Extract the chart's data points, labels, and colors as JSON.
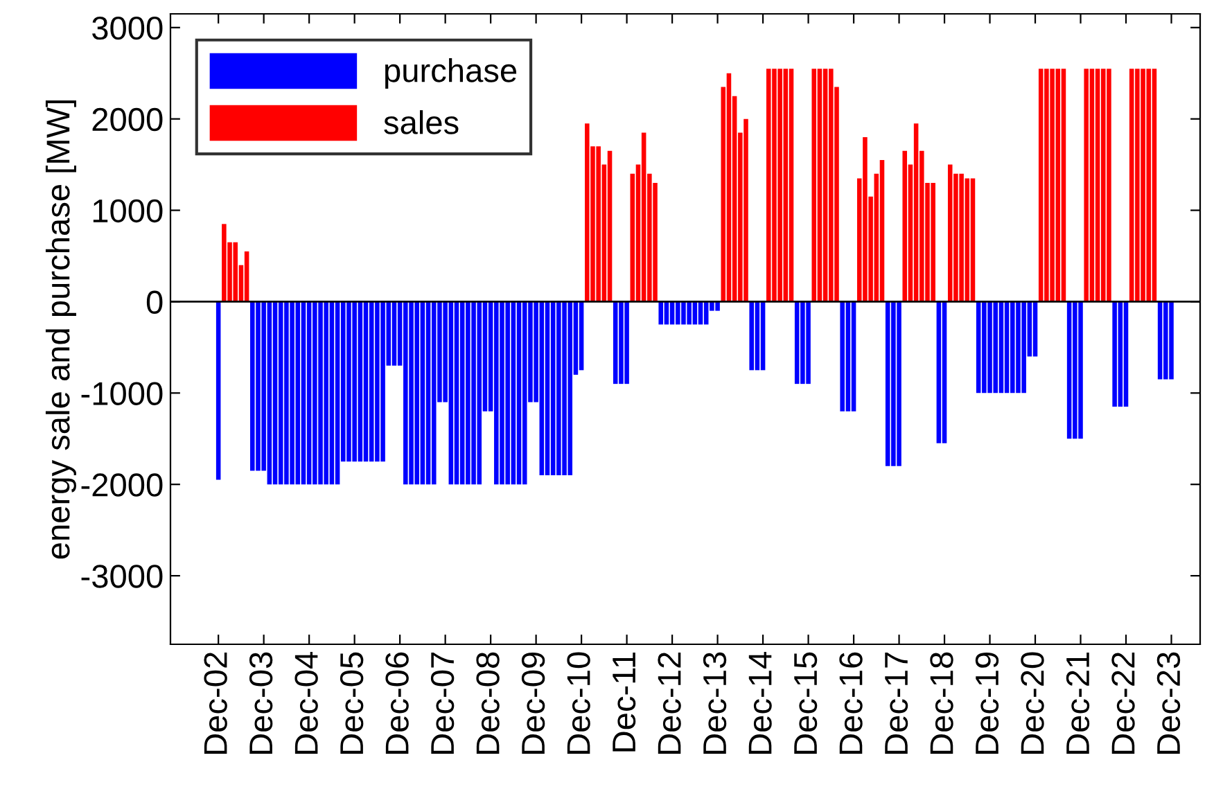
{
  "chart_data": {
    "type": "bar",
    "ylabel": "energy sale and purchase [MW]",
    "categories": [
      "Dec-02",
      null,
      null,
      null,
      null,
      null,
      null,
      null,
      "Dec-03",
      null,
      null,
      null,
      null,
      null,
      null,
      null,
      "Dec-04",
      null,
      null,
      null,
      null,
      null,
      null,
      null,
      "Dec-05",
      null,
      null,
      null,
      null,
      null,
      null,
      null,
      "Dec-06",
      null,
      null,
      null,
      null,
      null,
      null,
      null,
      "Dec-07",
      null,
      null,
      null,
      null,
      null,
      null,
      null,
      "Dec-08",
      null,
      null,
      null,
      null,
      null,
      null,
      null,
      "Dec-09",
      null,
      null,
      null,
      null,
      null,
      null,
      null,
      "Dec-10",
      null,
      null,
      null,
      null,
      null,
      null,
      null,
      "Dec-11",
      null,
      null,
      null,
      null,
      null,
      null,
      null,
      "Dec-12",
      null,
      null,
      null,
      null,
      null,
      null,
      null,
      "Dec-13",
      null,
      null,
      null,
      null,
      null,
      null,
      null,
      "Dec-14",
      null,
      null,
      null,
      null,
      null,
      null,
      null,
      "Dec-15",
      null,
      null,
      null,
      null,
      null,
      null,
      null,
      "Dec-16",
      null,
      null,
      null,
      null,
      null,
      null,
      null,
      "Dec-17",
      null,
      null,
      null,
      null,
      null,
      null,
      null,
      "Dec-18",
      null,
      null,
      null,
      null,
      null,
      null,
      null,
      "Dec-19",
      null,
      null,
      null,
      null,
      null,
      null,
      null,
      "Dec-20",
      null,
      null,
      null,
      null,
      null,
      null,
      null,
      "Dec-21",
      null,
      null,
      null,
      null,
      null,
      null,
      null,
      "Dec-22",
      null,
      null,
      null,
      null,
      null,
      null,
      null,
      "Dec-23"
    ],
    "series": [
      {
        "name": "purchase",
        "color": "#0000ff",
        "values": [
          -1950,
          null,
          null,
          null,
          null,
          null,
          -1850,
          -1850,
          -1850,
          -2000,
          -2000,
          -2000,
          -2000,
          -2000,
          -2000,
          -2000,
          -2000,
          -2000,
          -2000,
          -2000,
          -2000,
          -2000,
          -1750,
          -1750,
          -1750,
          -1750,
          -1750,
          -1750,
          -1750,
          -1750,
          -700,
          -700,
          -700,
          -2000,
          -2000,
          -2000,
          -2000,
          -2000,
          -2000,
          -1100,
          -1100,
          -2000,
          -2000,
          -2000,
          -2000,
          -2000,
          -2000,
          -1200,
          -1200,
          -2000,
          -2000,
          -2000,
          -2000,
          -2000,
          -2000,
          -1100,
          -1100,
          -1900,
          -1900,
          -1900,
          -1900,
          -1900,
          -1900,
          -800,
          -750,
          null,
          null,
          null,
          null,
          null,
          -900,
          -900,
          -900,
          null,
          null,
          null,
          null,
          null,
          -250,
          -250,
          -250,
          -250,
          -250,
          -250,
          -250,
          -250,
          -250,
          -100,
          -100,
          null,
          null,
          null,
          null,
          null,
          -750,
          -750,
          -750,
          null,
          null,
          null,
          null,
          null,
          -900,
          -900,
          -900,
          null,
          null,
          null,
          null,
          null,
          -1200,
          -1200,
          -1200,
          null,
          null,
          null,
          null,
          null,
          -1800,
          -1800,
          -1800,
          null,
          null,
          null,
          null,
          null,
          null,
          -1550,
          -1550,
          null,
          null,
          null,
          null,
          null,
          -1000,
          -1000,
          -1000,
          -1000,
          -1000,
          -1000,
          -1000,
          -1000,
          -1000,
          -600,
          -600,
          null,
          null,
          null,
          null,
          null,
          -1500,
          -1500,
          -1500,
          null,
          null,
          null,
          null,
          null,
          -1150,
          -1150,
          -1150,
          null,
          null,
          null,
          null,
          null,
          -850,
          -850,
          -850
        ]
      },
      {
        "name": "sales",
        "color": "#ff0000",
        "values": [
          null,
          850,
          650,
          650,
          400,
          550,
          null,
          null,
          null,
          null,
          null,
          null,
          null,
          null,
          null,
          null,
          null,
          null,
          null,
          null,
          null,
          null,
          null,
          null,
          null,
          null,
          null,
          null,
          null,
          null,
          null,
          null,
          null,
          null,
          null,
          null,
          null,
          null,
          null,
          null,
          null,
          null,
          null,
          null,
          null,
          null,
          null,
          null,
          null,
          null,
          null,
          null,
          null,
          null,
          null,
          null,
          null,
          null,
          null,
          null,
          null,
          null,
          null,
          null,
          null,
          1950,
          1700,
          1700,
          1500,
          1650,
          null,
          null,
          null,
          1400,
          1500,
          1850,
          1400,
          1300,
          null,
          null,
          null,
          null,
          null,
          null,
          null,
          null,
          null,
          null,
          null,
          2350,
          2500,
          2250,
          1850,
          2000,
          null,
          null,
          null,
          2550,
          2550,
          2550,
          2550,
          2550,
          null,
          null,
          null,
          2550,
          2550,
          2550,
          2550,
          2350,
          null,
          null,
          null,
          1350,
          1800,
          1150,
          1400,
          1550,
          null,
          null,
          null,
          1650,
          1500,
          1950,
          1650,
          1300,
          1300,
          null,
          null,
          1500,
          1400,
          1400,
          1350,
          1350,
          null,
          null,
          null,
          null,
          null,
          null,
          null,
          null,
          null,
          null,
          null,
          2550,
          2550,
          2550,
          2550,
          2550,
          null,
          null,
          null,
          2550,
          2550,
          2550,
          2550,
          2550,
          null,
          null,
          null,
          2550,
          2550,
          2550,
          2550,
          2550,
          null,
          null,
          null
        ]
      }
    ],
    "ylim": [
      -3750,
      3150
    ],
    "yticks": [
      -3000,
      -2000,
      -1000,
      0,
      1000,
      2000,
      3000
    ],
    "ref_lines": [
      {
        "axis": "y",
        "value": 0,
        "color": "#000000"
      }
    ],
    "grid": false,
    "legend": "top left"
  }
}
